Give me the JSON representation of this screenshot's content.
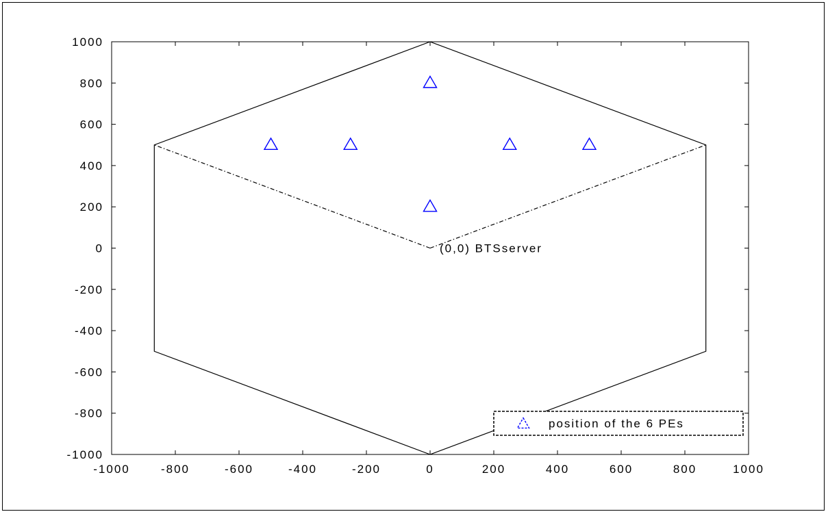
{
  "chart_data": {
    "type": "scatter",
    "title": "",
    "xlabel": "",
    "ylabel": "",
    "xlim": [
      -1000,
      1000
    ],
    "ylim": [
      -1000,
      1000
    ],
    "xticks": [
      -1000,
      -800,
      -600,
      -400,
      -200,
      0,
      200,
      400,
      600,
      800,
      1000
    ],
    "yticks": [
      -1000,
      -800,
      -600,
      -400,
      -200,
      0,
      200,
      400,
      600,
      800,
      1000
    ],
    "grid": false,
    "series": [
      {
        "name": "position of the 6 PEs",
        "marker": "triangle",
        "color": "#0000ff",
        "points": [
          {
            "x": 0,
            "y": 800
          },
          {
            "x": -500,
            "y": 500
          },
          {
            "x": -250,
            "y": 500
          },
          {
            "x": 250,
            "y": 500
          },
          {
            "x": 500,
            "y": 500
          },
          {
            "x": 0,
            "y": 200
          }
        ]
      }
    ],
    "hexagon": {
      "color": "#000000",
      "vertices": [
        {
          "x": 0,
          "y": 1000
        },
        {
          "x": 866,
          "y": 500
        },
        {
          "x": 866,
          "y": -500
        },
        {
          "x": 0,
          "y": -1000
        },
        {
          "x": -866,
          "y": -500
        },
        {
          "x": -866,
          "y": 500
        }
      ]
    },
    "sector_lines": {
      "style": "dash-dot",
      "color": "#000000",
      "origin": {
        "x": 0,
        "y": 0
      },
      "to": [
        {
          "x": -866,
          "y": 500
        },
        {
          "x": 866,
          "y": 500
        }
      ]
    },
    "annotation": {
      "text": "(0,0) BTSserver",
      "at": {
        "x": 0,
        "y": 0
      }
    },
    "legend": {
      "position": "bottom-right",
      "entries": [
        "position of the 6 PEs"
      ]
    }
  }
}
